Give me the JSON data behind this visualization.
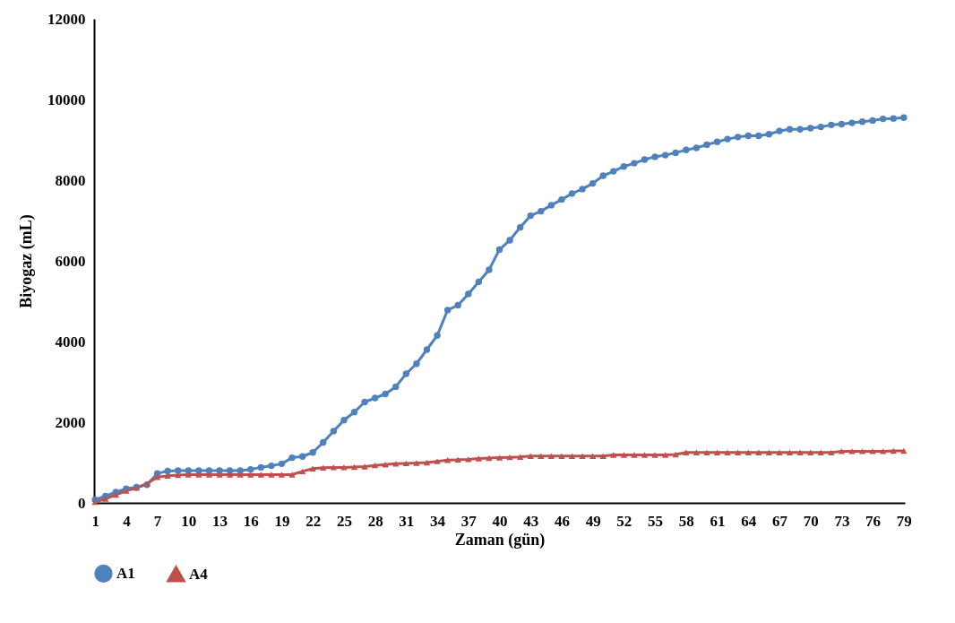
{
  "chart_data": {
    "type": "line",
    "xlabel": "Zaman (gün)",
    "ylabel": "Biyogaz (mL)",
    "categories": [
      "1",
      null,
      null,
      "4",
      null,
      null,
      "7",
      null,
      null,
      "10",
      null,
      null,
      "13",
      null,
      null,
      "16",
      null,
      null,
      "19",
      null,
      null,
      "22",
      null,
      null,
      "25",
      null,
      null,
      "28",
      null,
      null,
      "31",
      null,
      null,
      "34",
      null,
      null,
      "37",
      null,
      null,
      "40",
      null,
      null,
      "43",
      null,
      null,
      "46",
      null,
      null,
      "49",
      null,
      null,
      "52",
      null,
      null,
      "55",
      null,
      null,
      "58",
      null,
      null,
      "61",
      null,
      null,
      "64",
      null,
      null,
      "67",
      null,
      null,
      "70",
      null,
      null,
      "73",
      null,
      null,
      "76",
      null,
      null,
      "79"
    ],
    "series": [
      {
        "name": "A1",
        "color": "#4f81bd",
        "marker": "circle",
        "values": [
          80,
          170,
          270,
          350,
          390,
          450,
          730,
          790,
          800,
          800,
          800,
          800,
          800,
          800,
          800,
          830,
          880,
          920,
          970,
          1120,
          1150,
          1250,
          1500,
          1780,
          2050,
          2250,
          2500,
          2600,
          2700,
          2880,
          3200,
          3450,
          3800,
          4150,
          4780,
          4900,
          5180,
          5480,
          5780,
          6280,
          6510,
          6830,
          7120,
          7230,
          7380,
          7520,
          7670,
          7780,
          7920,
          8110,
          8220,
          8340,
          8420,
          8510,
          8580,
          8620,
          8680,
          8750,
          8800,
          8880,
          8950,
          9020,
          9070,
          9100,
          9100,
          9140,
          9220,
          9260,
          9260,
          9290,
          9320,
          9370,
          9390,
          9420,
          9450,
          9480,
          9520,
          9530,
          9550
        ]
      },
      {
        "name": "A4",
        "color": "#c0504d",
        "marker": "triangle",
        "values": [
          20,
          100,
          200,
          300,
          370,
          480,
          640,
          670,
          690,
          700,
          700,
          700,
          700,
          700,
          700,
          700,
          700,
          700,
          700,
          700,
          780,
          850,
          870,
          880,
          880,
          890,
          900,
          930,
          950,
          970,
          980,
          990,
          1000,
          1030,
          1060,
          1070,
          1080,
          1100,
          1110,
          1120,
          1130,
          1140,
          1160,
          1160,
          1160,
          1160,
          1160,
          1160,
          1160,
          1160,
          1190,
          1190,
          1190,
          1190,
          1190,
          1190,
          1200,
          1250,
          1250,
          1250,
          1250,
          1250,
          1250,
          1250,
          1250,
          1250,
          1250,
          1250,
          1250,
          1250,
          1250,
          1250,
          1280,
          1280,
          1280,
          1280,
          1280,
          1290,
          1290
        ]
      }
    ],
    "ylim": [
      0,
      12000
    ],
    "yticks": [
      0,
      2000,
      4000,
      6000,
      8000,
      10000,
      12000
    ],
    "grid": false,
    "legend": "bottom",
    "line_style": "solid"
  }
}
